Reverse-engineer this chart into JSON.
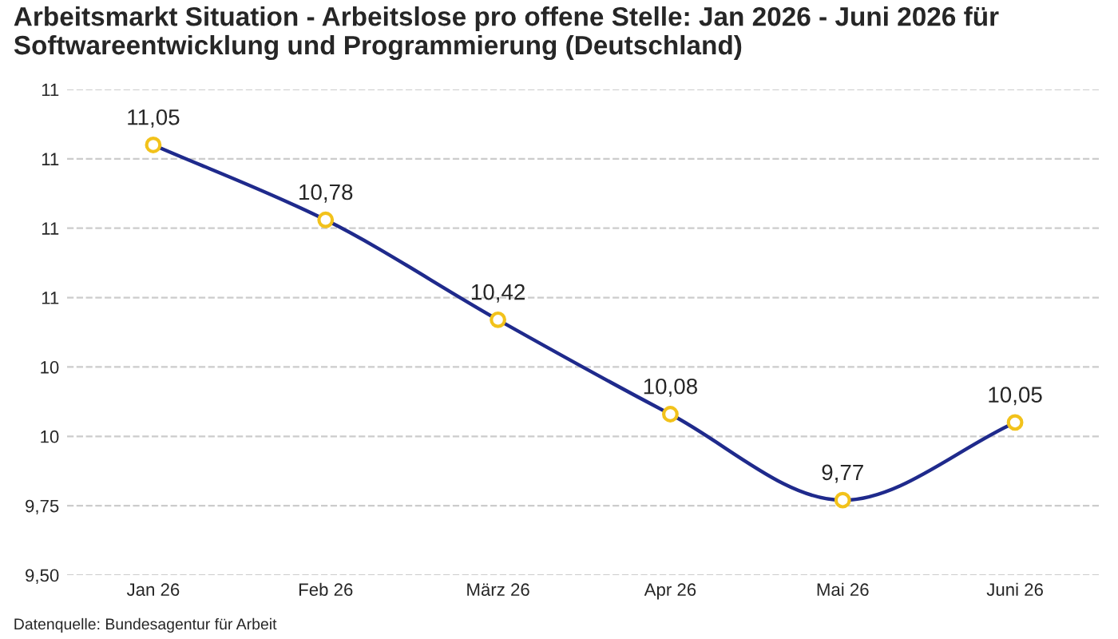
{
  "chart_data": {
    "type": "line",
    "title": "Arbeitsmarkt Situation - Arbeitslose pro offene Stelle: Jan 2026 - Juni 2026 für Softwareentwicklung und Programmierung (Deutschland)",
    "categories": [
      "Jan 26",
      "Feb 26",
      "März 26",
      "Apr 26",
      "Mai 26",
      "Juni 26"
    ],
    "series": [
      {
        "color": "#1f2a8c",
        "values": [
          11.05,
          10.78,
          10.42,
          10.08,
          9.77,
          10.05
        ],
        "value_labels": [
          "11,05",
          "10,78",
          "10,42",
          "10,08",
          "9,77",
          "10,05"
        ]
      }
    ],
    "ylim": [
      9.5,
      11.25
    ],
    "yticks": [
      {
        "value": 9.5,
        "label": "9,50"
      },
      {
        "value": 9.75,
        "label": "9,75"
      },
      {
        "value": 10.0,
        "label": "10"
      },
      {
        "value": 10.25,
        "label": "10"
      },
      {
        "value": 10.5,
        "label": "11"
      },
      {
        "value": 10.75,
        "label": "11"
      },
      {
        "value": 11.0,
        "label": "11"
      },
      {
        "value": 11.25,
        "label": "11"
      }
    ],
    "grid": "y",
    "marker": "circle",
    "legend": false,
    "annotations": [
      "Datenquelle: Bundesagentur für Arbeit"
    ]
  }
}
